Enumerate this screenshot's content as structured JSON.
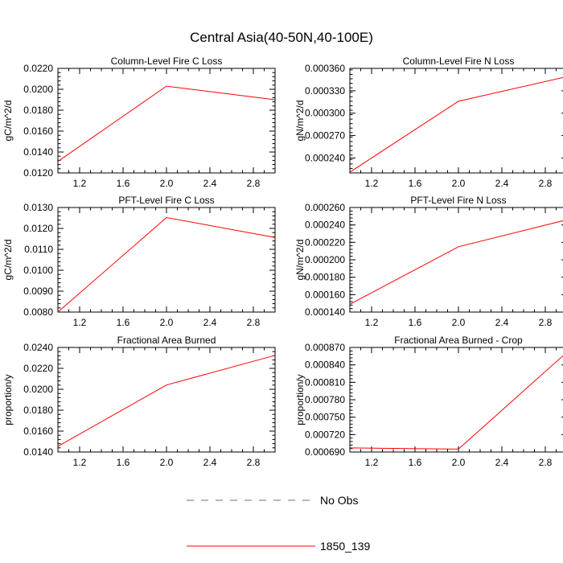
{
  "title": "Central Asia(40-50N,40-100E)",
  "legend": {
    "items": [
      {
        "label": "No Obs",
        "color": "#6a6aa8",
        "style": "dashed"
      },
      {
        "label": "1850_139",
        "color": "#ff0000",
        "style": "solid"
      }
    ]
  },
  "chart_data": [
    {
      "type": "line",
      "title": "Column-Level Fire C Loss",
      "ylabel": "gC/m^2/d",
      "xlim": [
        1.0,
        3.0
      ],
      "ylim": [
        0.012,
        0.022
      ],
      "xticks": [
        1.2,
        1.6,
        2.0,
        2.4,
        2.8
      ],
      "xtick_labels": [
        "1.2",
        "1.6",
        "2.0",
        "2.4",
        "2.8"
      ],
      "yticks": [
        0.012,
        0.014,
        0.016,
        0.018,
        0.02,
        0.022
      ],
      "ytick_labels": [
        "0.0120",
        "0.0140",
        "0.0160",
        "0.0180",
        "0.0200",
        "0.0220"
      ],
      "series": [
        {
          "name": "1850_139",
          "x": [
            1,
            2,
            3
          ],
          "y": [
            0.0131,
            0.0203,
            0.019
          ]
        }
      ]
    },
    {
      "type": "line",
      "title": "Column-Level Fire N Loss",
      "ylabel": "gN/m^2/d",
      "xlim": [
        1.0,
        3.0
      ],
      "ylim": [
        0.00022,
        0.00036
      ],
      "xticks": [
        1.2,
        1.6,
        2.0,
        2.4,
        2.8
      ],
      "xtick_labels": [
        "1.2",
        "1.6",
        "2.0",
        "2.4",
        "2.8"
      ],
      "yticks": [
        0.00024,
        0.00027,
        0.0003,
        0.00033,
        0.00036
      ],
      "ytick_labels": [
        "0.000240",
        "0.000270",
        "0.000300",
        "0.000330",
        "0.000360"
      ],
      "series": [
        {
          "name": "1850_139",
          "x": [
            1,
            2,
            3
          ],
          "y": [
            0.000221,
            0.000316,
            0.000349
          ]
        }
      ]
    },
    {
      "type": "line",
      "title": "PFT-Level Fire C Loss",
      "ylabel": "gC/m^2/d",
      "xlim": [
        1.0,
        3.0
      ],
      "ylim": [
        0.008,
        0.013
      ],
      "xticks": [
        1.2,
        1.6,
        2.0,
        2.4,
        2.8
      ],
      "xtick_labels": [
        "1.2",
        "1.6",
        "2.0",
        "2.4",
        "2.8"
      ],
      "yticks": [
        0.008,
        0.009,
        0.01,
        0.011,
        0.012,
        0.013
      ],
      "ytick_labels": [
        "0.0080",
        "0.0090",
        "0.0100",
        "0.0110",
        "0.0120",
        "0.0130"
      ],
      "series": [
        {
          "name": "1850_139",
          "x": [
            1,
            2,
            3
          ],
          "y": [
            0.008,
            0.01252,
            0.01157
          ]
        }
      ]
    },
    {
      "type": "line",
      "title": "PFT-Level Fire N Loss",
      "ylabel": "gN/m^2/d",
      "xlim": [
        1.0,
        3.0
      ],
      "ylim": [
        0.00014,
        0.00026
      ],
      "xticks": [
        1.2,
        1.6,
        2.0,
        2.4,
        2.8
      ],
      "xtick_labels": [
        "1.2",
        "1.6",
        "2.0",
        "2.4",
        "2.8"
      ],
      "yticks": [
        0.00014,
        0.00016,
        0.00018,
        0.0002,
        0.00022,
        0.00024,
        0.00026
      ],
      "ytick_labels": [
        "0.000140",
        "0.000160",
        "0.000180",
        "0.000200",
        "0.000220",
        "0.000240",
        "0.000260"
      ],
      "series": [
        {
          "name": "1850_139",
          "x": [
            1,
            2,
            3
          ],
          "y": [
            0.000149,
            0.000215,
            0.000246
          ]
        }
      ]
    },
    {
      "type": "line",
      "title": "Fractional Area Burned",
      "ylabel": "proportion/y",
      "xlim": [
        1.0,
        3.0
      ],
      "ylim": [
        0.014,
        0.024
      ],
      "xticks": [
        1.2,
        1.6,
        2.0,
        2.4,
        2.8
      ],
      "xtick_labels": [
        "1.2",
        "1.6",
        "2.0",
        "2.4",
        "2.8"
      ],
      "yticks": [
        0.014,
        0.016,
        0.018,
        0.02,
        0.022,
        0.024
      ],
      "ytick_labels": [
        "0.0140",
        "0.0160",
        "0.0180",
        "0.0200",
        "0.0220",
        "0.0240"
      ],
      "series": [
        {
          "name": "1850_139",
          "x": [
            1,
            2,
            3
          ],
          "y": [
            0.01455,
            0.02041,
            0.02325
          ]
        }
      ]
    },
    {
      "type": "line",
      "title": "Fractional Area Burned - Crop",
      "ylabel": "proportion/y",
      "xlim": [
        1.0,
        3.0
      ],
      "ylim": [
        0.00069,
        0.00087
      ],
      "xticks": [
        1.2,
        1.6,
        2.0,
        2.4,
        2.8
      ],
      "xtick_labels": [
        "1.2",
        "1.6",
        "2.0",
        "2.4",
        "2.8"
      ],
      "yticks": [
        0.00069,
        0.00072,
        0.00075,
        0.00078,
        0.00081,
        0.00084,
        0.00087
      ],
      "ytick_labels": [
        "0.000690",
        "0.000720",
        "0.000750",
        "0.000780",
        "0.000810",
        "0.000840",
        "0.000870"
      ],
      "series": [
        {
          "name": "1850_139",
          "x": [
            1,
            2,
            3
          ],
          "y": [
            0.000697,
            0.000695,
            0.000862
          ]
        }
      ]
    }
  ]
}
